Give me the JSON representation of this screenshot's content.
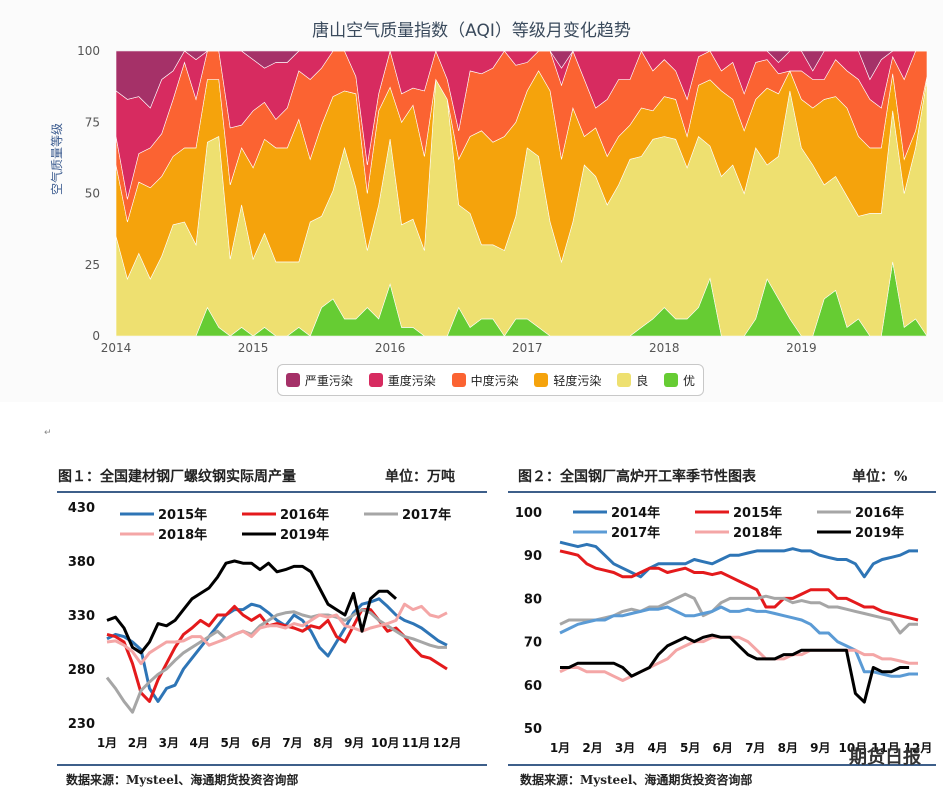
{
  "chart_data": [
    {
      "type": "area",
      "title": "唐山空气质量指数（AQI）等级月变化趋势",
      "ylabel": "空气质量等级",
      "ylim": [
        0,
        100
      ],
      "yticks": [
        "0",
        "25",
        "50",
        "75",
        "100"
      ],
      "xticks": [
        "2014",
        "2015",
        "2016",
        "2017",
        "2018",
        "2019"
      ],
      "stacking": "percent",
      "series": [
        {
          "name": "优",
          "color": "#66cc33",
          "values": [
            0,
            0,
            0,
            0,
            0,
            0,
            0,
            0,
            10,
            3,
            0,
            3,
            0,
            3,
            0,
            0,
            3,
            0,
            10,
            13,
            6,
            6,
            10,
            6,
            20,
            3,
            3,
            0,
            0,
            0,
            10,
            3,
            6,
            6,
            0,
            6,
            6,
            3,
            0,
            0,
            0,
            0,
            0,
            0,
            0,
            0,
            3,
            6,
            10,
            6,
            6,
            10,
            20,
            0,
            0,
            0,
            6,
            20,
            13,
            6,
            0,
            0,
            13,
            16,
            3,
            6,
            0,
            0,
            26,
            3,
            6,
            0
          ]
        },
        {
          "name": "良",
          "color": "#eee070",
          "values": [
            35,
            20,
            29,
            20,
            28,
            39,
            40,
            32,
            58,
            67,
            27,
            43,
            27,
            33,
            26,
            26,
            23,
            40,
            32,
            38,
            60,
            46,
            20,
            40,
            56,
            36,
            38,
            30,
            90,
            83,
            36,
            40,
            26,
            26,
            30,
            36,
            60,
            60,
            40,
            26,
            40,
            60,
            56,
            46,
            53,
            62,
            60,
            63,
            60,
            63,
            53,
            60,
            46,
            56,
            60,
            50,
            60,
            40,
            50,
            80,
            66,
            60,
            40,
            40,
            46,
            36,
            43,
            43,
            53,
            47,
            60,
            90
          ]
        },
        {
          "name": "轻度污染",
          "color": "#f5a30c",
          "values": [
            25,
            20,
            25,
            32,
            28,
            24,
            26,
            34,
            22,
            20,
            26,
            20,
            32,
            33,
            40,
            40,
            50,
            22,
            32,
            33,
            20,
            33,
            20,
            33,
            20,
            36,
            40,
            33,
            0,
            0,
            16,
            27,
            40,
            36,
            40,
            33,
            20,
            30,
            46,
            36,
            40,
            10,
            17,
            17,
            17,
            12,
            17,
            10,
            14,
            14,
            11,
            18,
            23,
            30,
            23,
            22,
            17,
            27,
            22,
            7,
            17,
            20,
            30,
            28,
            31,
            28,
            23,
            23,
            13,
            12,
            6,
            1
          ]
        },
        {
          "name": "中度污染",
          "color": "#fb6332",
          "values": [
            10,
            8,
            10,
            14,
            15,
            20,
            30,
            17,
            10,
            10,
            20,
            8,
            20,
            13,
            10,
            14,
            17,
            28,
            20,
            16,
            14,
            6,
            10,
            6,
            14,
            10,
            6,
            23,
            10,
            7,
            10,
            23,
            20,
            26,
            30,
            20,
            10,
            7,
            14,
            26,
            20,
            20,
            7,
            20,
            20,
            16,
            20,
            14,
            13,
            10,
            13,
            10,
            10,
            7,
            13,
            13,
            13,
            10,
            7,
            0,
            10,
            10,
            7,
            13,
            13,
            20,
            17,
            14,
            6,
            28,
            28,
            9
          ]
        },
        {
          "name": "重度污染",
          "color": "#d72b60",
          "values": [
            16,
            35,
            20,
            14,
            19,
            10,
            4,
            14,
            0,
            0,
            27,
            26,
            18,
            12,
            20,
            16,
            7,
            10,
            6,
            0,
            0,
            9,
            40,
            15,
            0,
            15,
            13,
            14,
            0,
            10,
            28,
            7,
            8,
            6,
            0,
            5,
            4,
            0,
            0,
            6,
            0,
            10,
            20,
            17,
            10,
            10,
            0,
            7,
            3,
            7,
            17,
            2,
            0,
            7,
            4,
            15,
            4,
            3,
            4,
            7,
            7,
            3,
            10,
            3,
            7,
            10,
            7,
            17,
            2,
            10,
            0,
            0
          ]
        },
        {
          "name": "严重污染",
          "color": "#a53168",
          "values": [
            14,
            17,
            16,
            20,
            10,
            7,
            0,
            3,
            0,
            0,
            0,
            0,
            3,
            6,
            4,
            4,
            0,
            0,
            0,
            0,
            0,
            0,
            0,
            0,
            0,
            0,
            0,
            0,
            0,
            0,
            0,
            0,
            0,
            0,
            0,
            0,
            0,
            0,
            0,
            6,
            0,
            0,
            0,
            0,
            0,
            0,
            0,
            0,
            0,
            0,
            0,
            0,
            0,
            0,
            0,
            0,
            0,
            0,
            4,
            0,
            0,
            7,
            0,
            0,
            0,
            0,
            10,
            3,
            0,
            0,
            0,
            0
          ]
        }
      ]
    },
    {
      "type": "line",
      "title": "图１：全国建材钢厂螺纹钢实际周产量",
      "unit": "单位：万吨",
      "ylim": [
        230,
        430
      ],
      "yticks": [
        "230",
        "280",
        "330",
        "380",
        "430"
      ],
      "xticks": [
        "1月",
        "2月",
        "3月",
        "4月",
        "5月",
        "6月",
        "7月",
        "8月",
        "9月",
        "10月",
        "11月",
        "12月"
      ],
      "series": [
        {
          "name": "2015年",
          "color": "#2e75b6",
          "values": [
            308,
            312,
            310,
            305,
            298,
            262,
            250,
            262,
            265,
            280,
            290,
            300,
            310,
            320,
            330,
            335,
            335,
            340,
            338,
            332,
            325,
            320,
            330,
            325,
            315,
            300,
            292,
            305,
            318,
            332,
            340,
            342,
            345,
            338,
            330,
            325,
            322,
            318,
            312,
            306,
            302
          ]
        },
        {
          "name": "2016年",
          "color": "#e41a1c",
          "values": [
            312,
            310,
            305,
            285,
            258,
            250,
            270,
            285,
            300,
            312,
            318,
            325,
            320,
            330,
            330,
            338,
            330,
            325,
            330,
            320,
            322,
            320,
            318,
            315,
            320,
            318,
            325,
            310,
            305,
            320,
            335,
            335,
            325,
            315,
            318,
            310,
            300,
            292,
            290,
            285,
            280
          ]
        },
        {
          "name": "2017年",
          "color": "#a6a6a6",
          "values": [
            272,
            262,
            250,
            240,
            260,
            268,
            275,
            280,
            288,
            295,
            300,
            305,
            310,
            315,
            308,
            312,
            315,
            312,
            320,
            325,
            330,
            332,
            333,
            330,
            328,
            330,
            330,
            328,
            325,
            330,
            335,
            332,
            325,
            320,
            315,
            310,
            308,
            305,
            302,
            300,
            300
          ]
        },
        {
          "name": "2018年",
          "color": "#f4a6a6",
          "values": [
            305,
            306,
            302,
            296,
            285,
            295,
            300,
            305,
            305,
            306,
            310,
            310,
            302,
            305,
            308,
            312,
            315,
            310,
            318,
            320,
            320,
            318,
            322,
            320,
            325,
            330,
            328,
            330,
            320,
            318,
            315,
            318,
            320,
            322,
            325,
            340,
            335,
            338,
            330,
            328,
            332
          ]
        },
        {
          "name": "2019年",
          "color": "#000000",
          "values": [
            325,
            328,
            318,
            300,
            295,
            305,
            322,
            320,
            325,
            335,
            345,
            350,
            355,
            365,
            378,
            380,
            378,
            378,
            372,
            378,
            370,
            372,
            375,
            375,
            370,
            355,
            340,
            335,
            330,
            350,
            315,
            345,
            352,
            352,
            345
          ]
        }
      ]
    },
    {
      "type": "line",
      "title": "图２：全国钢厂高炉开工率季节性图表",
      "unit": "单位：%",
      "ylim": [
        50,
        100
      ],
      "yticks": [
        "50",
        "60",
        "70",
        "80",
        "90",
        "100"
      ],
      "xticks": [
        "1月",
        "2月",
        "3月",
        "4月",
        "5月",
        "6月",
        "7月",
        "8月",
        "9月",
        "10月",
        "11月",
        "12月"
      ],
      "series": [
        {
          "name": "2014年",
          "color": "#2e75b6",
          "values": [
            93,
            92.5,
            92,
            92.5,
            92,
            90,
            88,
            87,
            86,
            85,
            87,
            88,
            88,
            88,
            88,
            89,
            88.5,
            88,
            89,
            90,
            90,
            90.5,
            91,
            91,
            91,
            91,
            91.5,
            91,
            91,
            90,
            89.5,
            89,
            89,
            88,
            85,
            88,
            89,
            89.5,
            90,
            91,
            91
          ]
        },
        {
          "name": "2015年",
          "color": "#e41a1c",
          "values": [
            91,
            90.5,
            90,
            88,
            87,
            86.5,
            86,
            85,
            85,
            86,
            87,
            87,
            86,
            86.5,
            87,
            86,
            86,
            85.5,
            86,
            85,
            84,
            83,
            82,
            78,
            78,
            80,
            80,
            81,
            82,
            82,
            82,
            80,
            80,
            79,
            78,
            78,
            77,
            76.5,
            76,
            75.5,
            75
          ]
        },
        {
          "name": "2016年",
          "color": "#a6a6a6",
          "values": [
            74,
            75,
            75,
            75,
            75,
            75.5,
            76,
            77,
            77.5,
            77,
            78,
            78,
            79,
            80,
            81,
            80,
            76,
            77,
            79,
            80,
            80,
            80,
            80,
            80.5,
            80,
            80,
            79,
            79.5,
            79,
            79,
            78,
            78,
            77.5,
            77,
            76.5,
            76,
            75.5,
            75,
            72,
            74,
            74
          ]
        },
        {
          "name": "2017年",
          "color": "#5b9bd5",
          "values": [
            72,
            73,
            74,
            74.5,
            75,
            75,
            76,
            76,
            76.5,
            77,
            77.5,
            77.5,
            78,
            77,
            76,
            76,
            76.5,
            77,
            78,
            77,
            77,
            77.5,
            77,
            77,
            76.5,
            76,
            75.5,
            75,
            74,
            72,
            72,
            70,
            69,
            68,
            63,
            63,
            62.5,
            62,
            62,
            62.5,
            62.5
          ]
        },
        {
          "name": "2018年",
          "color": "#f4a6a6",
          "values": [
            63,
            64,
            64,
            63,
            63,
            63,
            62,
            61,
            62,
            63,
            64,
            65,
            66,
            68,
            69,
            70,
            70,
            71,
            71,
            71,
            71,
            70,
            68,
            66,
            66,
            66,
            67,
            67,
            68,
            68,
            68,
            68,
            68,
            68,
            67,
            67,
            66,
            66,
            65.5,
            65,
            65
          ]
        },
        {
          "name": "2019年",
          "color": "#000000",
          "values": [
            64,
            64,
            65,
            65,
            65,
            65,
            65,
            64,
            62,
            63,
            64,
            67,
            69,
            70,
            71,
            70,
            71,
            71.5,
            71,
            71,
            69,
            67,
            66,
            66,
            66,
            67,
            67,
            68,
            68,
            68,
            68,
            68,
            68,
            58,
            56,
            64,
            63,
            63,
            64,
            64
          ]
        }
      ]
    }
  ],
  "text": {
    "fig1_source": "数据来源：Mysteel、海通期货投资咨询部",
    "fig2_source": "数据来源：Mysteel、海通期货投资咨询部",
    "para": "↵",
    "watermark": "期货日报"
  }
}
